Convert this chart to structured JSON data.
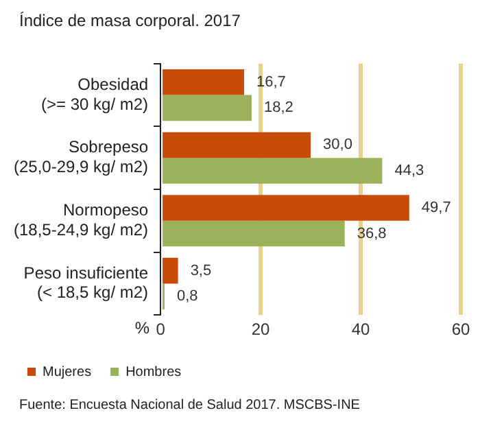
{
  "chart_data": {
    "type": "bar",
    "orientation": "horizontal",
    "title": "Índice de masa corporal. 2017",
    "xlabel": "%",
    "categories": [
      "Obesidad\n(>= 30 kg/ m2)",
      "Sobrepeso\n(25,0-29,9 kg/ m2)",
      "Normopeso\n(18,5-24,9 kg/ m2)",
      "Peso insuficiente\n(< 18,5 kg/ m2)"
    ],
    "series": [
      {
        "name": "Mujeres",
        "color": "#c84b0a",
        "values": [
          16.7,
          30.0,
          49.7,
          3.5
        ],
        "value_labels": [
          "16,7",
          "30,0",
          "49,7",
          "3,5"
        ]
      },
      {
        "name": "Hombres",
        "color": "#9bb159",
        "values": [
          18.2,
          44.3,
          36.8,
          0.8
        ],
        "value_labels": [
          "18,2",
          "44,3",
          "36,8",
          "0,8"
        ]
      }
    ],
    "xlim": [
      0,
      60
    ],
    "xticks": [
      0,
      20,
      40,
      60
    ],
    "grid": "x",
    "legend": "bottom left",
    "annotations": [
      "Fuente: Encuesta Nacional de Salud 2017. MSCBS-INE"
    ]
  }
}
